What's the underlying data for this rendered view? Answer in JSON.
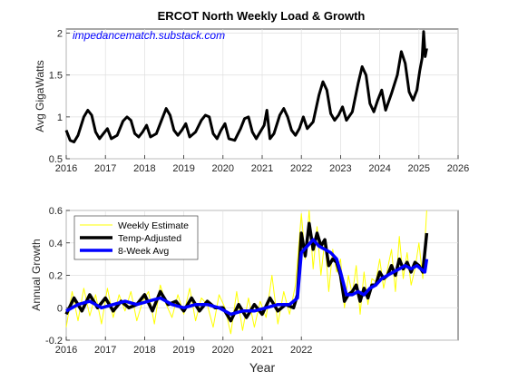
{
  "chart_data": [
    {
      "type": "line",
      "title": "ERCOT North Weekly Load & Growth",
      "watermark": "impedancematch.substack.com",
      "ylabel": "Avg GigaWatts",
      "xlabel": "",
      "xlim": [
        2016,
        2026
      ],
      "ylim": [
        0.5,
        2.05
      ],
      "xticks": [
        "2016",
        "2017",
        "2018",
        "2019",
        "2020",
        "2021",
        "2022",
        "2023",
        "2024",
        "2025",
        "2026"
      ],
      "yticks": [
        "0.5",
        "1",
        "1.5",
        "2"
      ],
      "grid": true,
      "series": [
        {
          "color": "#000000",
          "x": [
            2016.0,
            2016.1,
            2016.2,
            2016.3,
            2016.45,
            2016.55,
            2016.65,
            2016.75,
            2016.85,
            2016.95,
            2017.05,
            2017.15,
            2017.3,
            2017.45,
            2017.55,
            2017.65,
            2017.75,
            2017.85,
            2017.95,
            2018.05,
            2018.15,
            2018.3,
            2018.45,
            2018.55,
            2018.65,
            2018.75,
            2018.85,
            2018.95,
            2019.05,
            2019.15,
            2019.3,
            2019.45,
            2019.55,
            2019.65,
            2019.75,
            2019.85,
            2019.95,
            2020.05,
            2020.15,
            2020.3,
            2020.45,
            2020.55,
            2020.65,
            2020.75,
            2020.85,
            2020.95,
            2021.05,
            2021.12,
            2021.2,
            2021.3,
            2021.45,
            2021.55,
            2021.65,
            2021.75,
            2021.85,
            2021.95,
            2022.05,
            2022.15,
            2022.3,
            2022.45,
            2022.55,
            2022.65,
            2022.75,
            2022.85,
            2022.95,
            2023.05,
            2023.15,
            2023.3,
            2023.45,
            2023.55,
            2023.65,
            2023.75,
            2023.85,
            2023.95,
            2024.05,
            2024.15,
            2024.3,
            2024.45,
            2024.55,
            2024.65,
            2024.75,
            2024.85,
            2024.95,
            2025.02,
            2025.08,
            2025.12,
            2025.16,
            2025.2
          ],
          "y": [
            0.84,
            0.72,
            0.7,
            0.78,
            1.0,
            1.08,
            1.02,
            0.82,
            0.74,
            0.8,
            0.86,
            0.74,
            0.78,
            0.95,
            1.0,
            0.96,
            0.8,
            0.76,
            0.82,
            0.9,
            0.76,
            0.8,
            0.98,
            1.1,
            1.02,
            0.84,
            0.78,
            0.84,
            0.92,
            0.76,
            0.82,
            0.96,
            1.02,
            1.0,
            0.8,
            0.74,
            0.84,
            0.92,
            0.74,
            0.72,
            0.86,
            0.98,
            1.0,
            0.82,
            0.74,
            0.82,
            0.9,
            1.08,
            0.74,
            0.8,
            1.02,
            1.1,
            1.0,
            0.84,
            0.78,
            0.86,
            1.0,
            0.86,
            0.94,
            1.26,
            1.42,
            1.32,
            1.04,
            0.96,
            1.02,
            1.12,
            0.96,
            1.06,
            1.4,
            1.6,
            1.5,
            1.16,
            1.06,
            1.2,
            1.32,
            1.08,
            1.28,
            1.5,
            1.78,
            1.64,
            1.3,
            1.2,
            1.32,
            1.55,
            1.7,
            2.02,
            1.72,
            1.82
          ]
        }
      ]
    },
    {
      "type": "line",
      "ylabel": "Annual Growth",
      "xlabel": "Year",
      "xlim": [
        2016,
        2026
      ],
      "ylim": [
        -0.2,
        0.6
      ],
      "xticks": [
        "2016",
        "2017",
        "2018",
        "2019",
        "2020",
        "2021",
        "2022"
      ],
      "yticks": [
        "-0.2",
        "0",
        "0.2",
        "0.4",
        "0.6"
      ],
      "grid": true,
      "legend_position": "top-left",
      "series": [
        {
          "name": "Weekly Estimate",
          "color": "#ffff00",
          "x": [
            2016.0,
            2016.15,
            2016.3,
            2016.45,
            2016.6,
            2016.75,
            2016.9,
            2017.05,
            2017.2,
            2017.35,
            2017.5,
            2017.65,
            2017.8,
            2017.95,
            2018.1,
            2018.25,
            2018.4,
            2018.55,
            2018.7,
            2018.85,
            2019.0,
            2019.15,
            2019.3,
            2019.45,
            2019.6,
            2019.75,
            2019.9,
            2020.05,
            2020.2,
            2020.35,
            2020.5,
            2020.65,
            2020.8,
            2020.95,
            2021.1,
            2021.25,
            2021.4,
            2021.55,
            2021.7,
            2021.85,
            2022.0,
            2022.1,
            2022.2,
            2022.3,
            2022.4,
            2022.5,
            2022.6,
            2022.7,
            2022.8,
            2022.9,
            2023.0,
            2023.1,
            2023.2,
            2023.3,
            2023.4,
            2023.5,
            2023.6,
            2023.7,
            2023.8,
            2023.9,
            2024.0,
            2024.1,
            2024.2,
            2024.3,
            2024.4,
            2024.5,
            2024.6,
            2024.7,
            2024.8,
            2024.9,
            2025.0,
            2025.1,
            2025.2
          ],
          "y": [
            -0.12,
            0.1,
            -0.08,
            0.12,
            -0.05,
            0.08,
            -0.1,
            0.12,
            -0.06,
            0.08,
            -0.02,
            0.1,
            -0.08,
            0.04,
            0.1,
            -0.1,
            0.14,
            0.02,
            -0.06,
            0.08,
            -0.04,
            0.12,
            -0.08,
            0.06,
            0.02,
            -0.12,
            0.08,
            0.0,
            -0.16,
            0.1,
            -0.14,
            0.06,
            -0.12,
            0.04,
            -0.06,
            0.2,
            -0.1,
            0.1,
            -0.04,
            0.14,
            0.58,
            0.3,
            0.62,
            0.24,
            0.5,
            0.2,
            0.42,
            0.1,
            0.36,
            0.22,
            0.3,
            0.0,
            0.2,
            0.08,
            0.26,
            -0.04,
            0.22,
            0.02,
            0.18,
            0.16,
            0.3,
            0.12,
            0.24,
            0.36,
            0.1,
            0.44,
            0.18,
            0.34,
            0.14,
            0.24,
            0.4,
            0.18,
            0.6
          ]
        },
        {
          "name": "Temp-Adjusted",
          "color": "#000000",
          "x": [
            2016.0,
            2016.2,
            2016.4,
            2016.6,
            2016.8,
            2017.0,
            2017.2,
            2017.4,
            2017.6,
            2017.8,
            2018.0,
            2018.2,
            2018.4,
            2018.6,
            2018.8,
            2019.0,
            2019.2,
            2019.4,
            2019.6,
            2019.8,
            2020.0,
            2020.2,
            2020.4,
            2020.6,
            2020.8,
            2021.0,
            2021.2,
            2021.4,
            2021.6,
            2021.8,
            2021.9,
            2022.0,
            2022.1,
            2022.2,
            2022.3,
            2022.4,
            2022.5,
            2022.6,
            2022.7,
            2022.8,
            2022.9,
            2023.0,
            2023.1,
            2023.2,
            2023.3,
            2023.4,
            2023.5,
            2023.6,
            2023.7,
            2023.8,
            2023.9,
            2024.0,
            2024.1,
            2024.2,
            2024.3,
            2024.4,
            2024.5,
            2024.6,
            2024.7,
            2024.8,
            2024.9,
            2025.0,
            2025.1,
            2025.2
          ],
          "y": [
            -0.04,
            0.06,
            -0.02,
            0.08,
            0.0,
            0.06,
            -0.02,
            0.04,
            0.0,
            0.02,
            0.08,
            -0.02,
            0.1,
            0.02,
            0.04,
            -0.02,
            0.06,
            -0.02,
            0.04,
            0.0,
            0.0,
            -0.08,
            0.02,
            -0.06,
            0.02,
            -0.04,
            0.06,
            -0.02,
            0.02,
            0.0,
            0.08,
            0.46,
            0.32,
            0.52,
            0.36,
            0.46,
            0.38,
            0.42,
            0.26,
            0.3,
            0.28,
            0.2,
            0.04,
            0.08,
            0.1,
            0.14,
            0.04,
            0.12,
            0.06,
            0.14,
            0.14,
            0.22,
            0.18,
            0.2,
            0.26,
            0.2,
            0.3,
            0.24,
            0.28,
            0.22,
            0.28,
            0.26,
            0.22,
            0.46
          ]
        },
        {
          "name": "8-Week Avg",
          "color": "#0000ff",
          "x": [
            2016.0,
            2016.3,
            2016.6,
            2016.9,
            2017.2,
            2017.5,
            2017.8,
            2018.1,
            2018.4,
            2018.7,
            2019.0,
            2019.3,
            2019.6,
            2019.9,
            2020.2,
            2020.5,
            2020.8,
            2021.1,
            2021.4,
            2021.7,
            2021.9,
            2022.0,
            2022.15,
            2022.3,
            2022.45,
            2022.6,
            2022.75,
            2022.9,
            2023.0,
            2023.15,
            2023.3,
            2023.45,
            2023.6,
            2023.75,
            2023.9,
            2024.05,
            2024.2,
            2024.35,
            2024.5,
            2024.65,
            2024.8,
            2024.95,
            2025.05,
            2025.15,
            2025.2
          ],
          "y": [
            -0.02,
            0.02,
            0.04,
            0.0,
            0.02,
            0.04,
            0.02,
            0.04,
            0.06,
            0.02,
            0.0,
            0.02,
            0.02,
            0.0,
            -0.04,
            -0.02,
            -0.02,
            0.0,
            0.02,
            0.02,
            0.06,
            0.34,
            0.38,
            0.42,
            0.38,
            0.36,
            0.34,
            0.3,
            0.22,
            0.08,
            0.08,
            0.1,
            0.08,
            0.12,
            0.14,
            0.18,
            0.2,
            0.22,
            0.24,
            0.26,
            0.24,
            0.26,
            0.24,
            0.22,
            0.3
          ]
        }
      ]
    }
  ]
}
